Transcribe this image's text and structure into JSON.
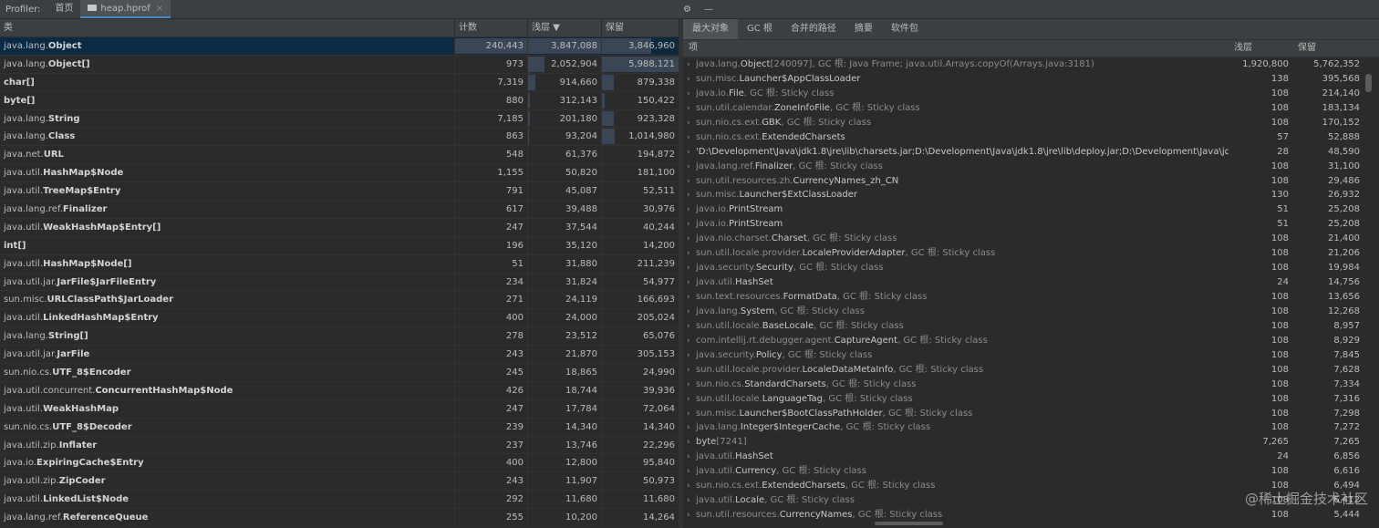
{
  "topbar": {
    "label": "Profiler:",
    "tabs": [
      {
        "label": "首页",
        "active": false
      },
      {
        "label": "heap.hprof",
        "active": true,
        "icon": "folder-icon"
      }
    ],
    "right_icons": [
      "gear-icon",
      "minimize-icon"
    ]
  },
  "left_table": {
    "columns": [
      "类",
      "计数",
      "浅层 ▼",
      "保留"
    ],
    "selected_row": 0,
    "rows": [
      {
        "pkg": "java.lang.",
        "name": "Object",
        "count": "240,443",
        "shallow": "3,847,088",
        "retained": "3,846,960",
        "count_frac": 1.0,
        "shallow_frac": 1.0,
        "retained_frac": 0.64
      },
      {
        "pkg": "java.lang.",
        "name": "Object[]",
        "count": "973",
        "shallow": "2,052,904",
        "retained": "5,988,121",
        "count_frac": 0.0,
        "shallow_frac": 0.23,
        "retained_frac": 1.0
      },
      {
        "pkg": "",
        "name": "char[]",
        "count": "7,319",
        "shallow": "914,660",
        "retained": "879,338",
        "count_frac": 0.0,
        "shallow_frac": 0.1,
        "retained_frac": 0.15
      },
      {
        "pkg": "",
        "name": "byte[]",
        "count": "880",
        "shallow": "312,143",
        "retained": "150,422",
        "count_frac": 0.0,
        "shallow_frac": 0.03,
        "retained_frac": 0.03
      },
      {
        "pkg": "java.lang.",
        "name": "String",
        "count": "7,185",
        "shallow": "201,180",
        "retained": "923,328",
        "count_frac": 0.0,
        "shallow_frac": 0.02,
        "retained_frac": 0.15
      },
      {
        "pkg": "java.lang.",
        "name": "Class",
        "count": "863",
        "shallow": "93,204",
        "retained": "1,014,980",
        "count_frac": 0.0,
        "shallow_frac": 0.01,
        "retained_frac": 0.17
      },
      {
        "pkg": "java.net.",
        "name": "URL",
        "count": "548",
        "shallow": "61,376",
        "retained": "194,872",
        "count_frac": 0,
        "shallow_frac": 0,
        "retained_frac": 0
      },
      {
        "pkg": "java.util.",
        "name": "HashMap$Node",
        "count": "1,155",
        "shallow": "50,820",
        "retained": "181,100",
        "count_frac": 0,
        "shallow_frac": 0,
        "retained_frac": 0
      },
      {
        "pkg": "java.util.",
        "name": "TreeMap$Entry",
        "count": "791",
        "shallow": "45,087",
        "retained": "52,511",
        "count_frac": 0,
        "shallow_frac": 0,
        "retained_frac": 0
      },
      {
        "pkg": "java.lang.ref.",
        "name": "Finalizer",
        "count": "617",
        "shallow": "39,488",
        "retained": "30,976",
        "count_frac": 0,
        "shallow_frac": 0,
        "retained_frac": 0
      },
      {
        "pkg": "java.util.",
        "name": "WeakHashMap$Entry[]",
        "count": "247",
        "shallow": "37,544",
        "retained": "40,244",
        "count_frac": 0,
        "shallow_frac": 0,
        "retained_frac": 0
      },
      {
        "pkg": "",
        "name": "int[]",
        "count": "196",
        "shallow": "35,120",
        "retained": "14,200",
        "count_frac": 0,
        "shallow_frac": 0,
        "retained_frac": 0
      },
      {
        "pkg": "java.util.",
        "name": "HashMap$Node[]",
        "count": "51",
        "shallow": "31,880",
        "retained": "211,239",
        "count_frac": 0,
        "shallow_frac": 0,
        "retained_frac": 0
      },
      {
        "pkg": "java.util.jar.",
        "name": "JarFile$JarFileEntry",
        "count": "234",
        "shallow": "31,824",
        "retained": "54,977",
        "count_frac": 0,
        "shallow_frac": 0,
        "retained_frac": 0
      },
      {
        "pkg": "sun.misc.",
        "name": "URLClassPath$JarLoader",
        "count": "271",
        "shallow": "24,119",
        "retained": "166,693",
        "count_frac": 0,
        "shallow_frac": 0,
        "retained_frac": 0
      },
      {
        "pkg": "java.util.",
        "name": "LinkedHashMap$Entry",
        "count": "400",
        "shallow": "24,000",
        "retained": "205,024",
        "count_frac": 0,
        "shallow_frac": 0,
        "retained_frac": 0
      },
      {
        "pkg": "java.lang.",
        "name": "String[]",
        "count": "278",
        "shallow": "23,512",
        "retained": "65,076",
        "count_frac": 0,
        "shallow_frac": 0,
        "retained_frac": 0
      },
      {
        "pkg": "java.util.jar.",
        "name": "JarFile",
        "count": "243",
        "shallow": "21,870",
        "retained": "305,153",
        "count_frac": 0,
        "shallow_frac": 0,
        "retained_frac": 0
      },
      {
        "pkg": "sun.nio.cs.",
        "name": "UTF_8$Encoder",
        "count": "245",
        "shallow": "18,865",
        "retained": "24,990",
        "count_frac": 0,
        "shallow_frac": 0,
        "retained_frac": 0
      },
      {
        "pkg": "java.util.concurrent.",
        "name": "ConcurrentHashMap$Node",
        "count": "426",
        "shallow": "18,744",
        "retained": "39,936",
        "count_frac": 0,
        "shallow_frac": 0,
        "retained_frac": 0
      },
      {
        "pkg": "java.util.",
        "name": "WeakHashMap",
        "count": "247",
        "shallow": "17,784",
        "retained": "72,064",
        "count_frac": 0,
        "shallow_frac": 0,
        "retained_frac": 0
      },
      {
        "pkg": "sun.nio.cs.",
        "name": "UTF_8$Decoder",
        "count": "239",
        "shallow": "14,340",
        "retained": "14,340",
        "count_frac": 0,
        "shallow_frac": 0,
        "retained_frac": 0
      },
      {
        "pkg": "java.util.zip.",
        "name": "Inflater",
        "count": "237",
        "shallow": "13,746",
        "retained": "22,296",
        "count_frac": 0,
        "shallow_frac": 0,
        "retained_frac": 0
      },
      {
        "pkg": "java.io.",
        "name": "ExpiringCache$Entry",
        "count": "400",
        "shallow": "12,800",
        "retained": "95,840",
        "count_frac": 0,
        "shallow_frac": 0,
        "retained_frac": 0
      },
      {
        "pkg": "java.util.zip.",
        "name": "ZipCoder",
        "count": "243",
        "shallow": "11,907",
        "retained": "50,973",
        "count_frac": 0,
        "shallow_frac": 0,
        "retained_frac": 0
      },
      {
        "pkg": "java.util.",
        "name": "LinkedList$Node",
        "count": "292",
        "shallow": "11,680",
        "retained": "11,680",
        "count_frac": 0,
        "shallow_frac": 0,
        "retained_frac": 0
      },
      {
        "pkg": "java.lang.ref.",
        "name": "ReferenceQueue",
        "count": "255",
        "shallow": "10,200",
        "retained": "14,264",
        "count_frac": 0,
        "shallow_frac": 0,
        "retained_frac": 0
      }
    ]
  },
  "right_panel": {
    "tabs": [
      "最大对象",
      "GC 根",
      "合并的路径",
      "摘要",
      "软件包"
    ],
    "active_tab": 0,
    "columns": [
      "项",
      "浅层",
      "保留"
    ],
    "rows": [
      {
        "pkg": "java.lang.",
        "name": "Object",
        "extra": "[240097], GC 根: Java Frame; java.util.Arrays.copyOf(Arrays.java:3181)",
        "shallow": "1,920,800",
        "retained": "5,762,352"
      },
      {
        "pkg": "sun.misc.",
        "name": "Launcher$AppClassLoader",
        "extra": "",
        "shallow": "138",
        "retained": "395,568"
      },
      {
        "pkg": "java.io.",
        "name": "File",
        "extra": ", GC 根: Sticky class",
        "shallow": "108",
        "retained": "214,140"
      },
      {
        "pkg": "sun.util.calendar.",
        "name": "ZoneInfoFile",
        "extra": ", GC 根: Sticky class",
        "shallow": "108",
        "retained": "183,134"
      },
      {
        "pkg": "sun.nio.cs.ext.",
        "name": "GBK",
        "extra": ", GC 根: Sticky class",
        "shallow": "108",
        "retained": "170,152"
      },
      {
        "pkg": "sun.nio.cs.ext.",
        "name": "ExtendedCharsets",
        "extra": "",
        "shallow": "57",
        "retained": "52,888"
      },
      {
        "pkg": "",
        "name": "'D:\\Development\\Java\\jdk1.8\\jre\\lib\\charsets.jar;D:\\Development\\Java\\jdk1.8\\jre\\lib\\deploy.jar;D:\\Development\\Java\\jdk1.8\\jre\\",
        "extra": "",
        "shallow": "28",
        "retained": "48,590"
      },
      {
        "pkg": "java.lang.ref.",
        "name": "Finalizer",
        "extra": ", GC 根: Sticky class",
        "shallow": "108",
        "retained": "31,100"
      },
      {
        "pkg": "sun.util.resources.zh.",
        "name": "CurrencyNames_zh_CN",
        "extra": "",
        "shallow": "108",
        "retained": "29,486"
      },
      {
        "pkg": "sun.misc.",
        "name": "Launcher$ExtClassLoader",
        "extra": "",
        "shallow": "130",
        "retained": "26,932"
      },
      {
        "pkg": "java.io.",
        "name": "PrintStream",
        "extra": "",
        "shallow": "51",
        "retained": "25,208"
      },
      {
        "pkg": "java.io.",
        "name": "PrintStream",
        "extra": "",
        "shallow": "51",
        "retained": "25,208"
      },
      {
        "pkg": "java.nio.charset.",
        "name": "Charset",
        "extra": ", GC 根: Sticky class",
        "shallow": "108",
        "retained": "21,400"
      },
      {
        "pkg": "sun.util.locale.provider.",
        "name": "LocaleProviderAdapter",
        "extra": ", GC 根: Sticky class",
        "shallow": "108",
        "retained": "21,206"
      },
      {
        "pkg": "java.security.",
        "name": "Security",
        "extra": ", GC 根: Sticky class",
        "shallow": "108",
        "retained": "19,984"
      },
      {
        "pkg": "java.util.",
        "name": "HashSet",
        "extra": "",
        "shallow": "24",
        "retained": "14,756"
      },
      {
        "pkg": "sun.text.resources.",
        "name": "FormatData",
        "extra": ", GC 根: Sticky class",
        "shallow": "108",
        "retained": "13,656"
      },
      {
        "pkg": "java.lang.",
        "name": "System",
        "extra": ", GC 根: Sticky class",
        "shallow": "108",
        "retained": "12,268"
      },
      {
        "pkg": "sun.util.locale.",
        "name": "BaseLocale",
        "extra": ", GC 根: Sticky class",
        "shallow": "108",
        "retained": "8,957"
      },
      {
        "pkg": "com.intellij.rt.debugger.agent.",
        "name": "CaptureAgent",
        "extra": ", GC 根: Sticky class",
        "shallow": "108",
        "retained": "8,929"
      },
      {
        "pkg": "java.security.",
        "name": "Policy",
        "extra": ", GC 根: Sticky class",
        "shallow": "108",
        "retained": "7,845"
      },
      {
        "pkg": "sun.util.locale.provider.",
        "name": "LocaleDataMetaInfo",
        "extra": ", GC 根: Sticky class",
        "shallow": "108",
        "retained": "7,628"
      },
      {
        "pkg": "sun.nio.cs.",
        "name": "StandardCharsets",
        "extra": ", GC 根: Sticky class",
        "shallow": "108",
        "retained": "7,334"
      },
      {
        "pkg": "sun.util.locale.",
        "name": "LanguageTag",
        "extra": ", GC 根: Sticky class",
        "shallow": "108",
        "retained": "7,316"
      },
      {
        "pkg": "sun.misc.",
        "name": "Launcher$BootClassPathHolder",
        "extra": ", GC 根: Sticky class",
        "shallow": "108",
        "retained": "7,298"
      },
      {
        "pkg": "java.lang.",
        "name": "Integer$IntegerCache",
        "extra": ", GC 根: Sticky class",
        "shallow": "108",
        "retained": "7,272"
      },
      {
        "pkg": "",
        "name": "byte",
        "extra": "[7241]",
        "shallow": "7,265",
        "retained": "7,265"
      },
      {
        "pkg": "java.util.",
        "name": "HashSet",
        "extra": "",
        "shallow": "24",
        "retained": "6,856"
      },
      {
        "pkg": "java.util.",
        "name": "Currency",
        "extra": ", GC 根: Sticky class",
        "shallow": "108",
        "retained": "6,616"
      },
      {
        "pkg": "sun.nio.cs.ext.",
        "name": "ExtendedCharsets",
        "extra": ", GC 根: Sticky class",
        "shallow": "108",
        "retained": "6,494"
      },
      {
        "pkg": "java.util.",
        "name": "Locale",
        "extra": ", GC 根: Sticky class",
        "shallow": "108",
        "retained": "6,412"
      },
      {
        "pkg": "sun.util.resources.",
        "name": "CurrencyNames",
        "extra": ", GC 根: Sticky class",
        "shallow": "108",
        "retained": "5,444"
      }
    ]
  },
  "watermark": "@稀土掘金技术社区"
}
